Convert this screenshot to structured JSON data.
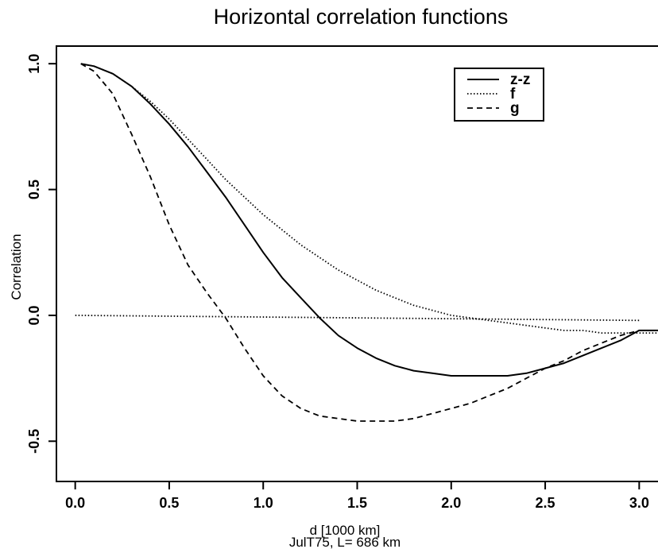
{
  "chart_data": {
    "type": "line",
    "title": "Horizontal correlation functions",
    "xlabel": "d [1000 km]",
    "subtitle": "JulT75, L= 686 km",
    "ylabel": "Correlation",
    "xlim": [
      -0.1,
      3.1
    ],
    "ylim": [
      -0.66,
      1.07
    ],
    "xticks": [
      0.0,
      0.5,
      1.0,
      1.5,
      2.0,
      2.5,
      3.0
    ],
    "xtick_labels": [
      "0.0",
      "0.5",
      "1.0",
      "1.5",
      "2.0",
      "2.5",
      "3.0"
    ],
    "yticks": [
      -0.5,
      0.0,
      0.5,
      1.0
    ],
    "ytick_labels": [
      "-0.5",
      "0.0",
      "0.5",
      "1.0"
    ],
    "grid": false,
    "legend_position": "top-right",
    "series": [
      {
        "name": "z-z",
        "style": "solid",
        "x": [
          0.03,
          0.1,
          0.2,
          0.3,
          0.4,
          0.5,
          0.6,
          0.7,
          0.8,
          0.9,
          1.0,
          1.1,
          1.2,
          1.3,
          1.4,
          1.5,
          1.6,
          1.7,
          1.8,
          1.9,
          2.0,
          2.1,
          2.2,
          2.3,
          2.4,
          2.5,
          2.6,
          2.7,
          2.8,
          2.9,
          3.0,
          3.1
        ],
        "y": [
          1.0,
          0.99,
          0.96,
          0.91,
          0.84,
          0.76,
          0.67,
          0.57,
          0.47,
          0.36,
          0.25,
          0.15,
          0.07,
          -0.01,
          -0.08,
          -0.13,
          -0.17,
          -0.2,
          -0.22,
          -0.23,
          -0.24,
          -0.24,
          -0.24,
          -0.24,
          -0.23,
          -0.21,
          -0.19,
          -0.16,
          -0.13,
          -0.1,
          -0.06,
          -0.06
        ]
      },
      {
        "name": "f",
        "style": "dotted",
        "x": [
          0.03,
          0.1,
          0.2,
          0.3,
          0.4,
          0.5,
          0.6,
          0.7,
          0.8,
          0.9,
          1.0,
          1.1,
          1.2,
          1.3,
          1.4,
          1.5,
          1.6,
          1.7,
          1.8,
          1.9,
          2.0,
          2.1,
          2.2,
          2.3,
          2.4,
          2.5,
          2.6,
          2.7,
          2.8,
          2.9,
          3.0,
          3.1
        ],
        "y": [
          1.0,
          0.99,
          0.96,
          0.91,
          0.85,
          0.78,
          0.7,
          0.62,
          0.54,
          0.47,
          0.4,
          0.34,
          0.28,
          0.23,
          0.18,
          0.14,
          0.1,
          0.07,
          0.04,
          0.02,
          0.0,
          -0.01,
          -0.02,
          -0.03,
          -0.04,
          -0.05,
          -0.06,
          -0.06,
          -0.07,
          -0.07,
          -0.07,
          -0.07
        ]
      },
      {
        "name": "g",
        "style": "dashed",
        "x": [
          0.03,
          0.1,
          0.2,
          0.3,
          0.4,
          0.5,
          0.6,
          0.7,
          0.8,
          0.9,
          1.0,
          1.1,
          1.2,
          1.3,
          1.4,
          1.5,
          1.6,
          1.7,
          1.8,
          1.9,
          2.0,
          2.1,
          2.2,
          2.3,
          2.4,
          2.5,
          2.6,
          2.7,
          2.8,
          2.9,
          3.0,
          3.1
        ],
        "y": [
          1.0,
          0.97,
          0.88,
          0.72,
          0.55,
          0.36,
          0.2,
          0.09,
          -0.01,
          -0.13,
          -0.24,
          -0.32,
          -0.37,
          -0.4,
          -0.41,
          -0.42,
          -0.42,
          -0.42,
          -0.41,
          -0.39,
          -0.37,
          -0.35,
          -0.32,
          -0.29,
          -0.25,
          -0.21,
          -0.18,
          -0.14,
          -0.11,
          -0.08,
          -0.06,
          -0.06
        ]
      },
      {
        "name": "",
        "style": "dotted",
        "x": [
          0.0,
          3.0
        ],
        "y": [
          0.0,
          -0.02
        ]
      }
    ]
  }
}
